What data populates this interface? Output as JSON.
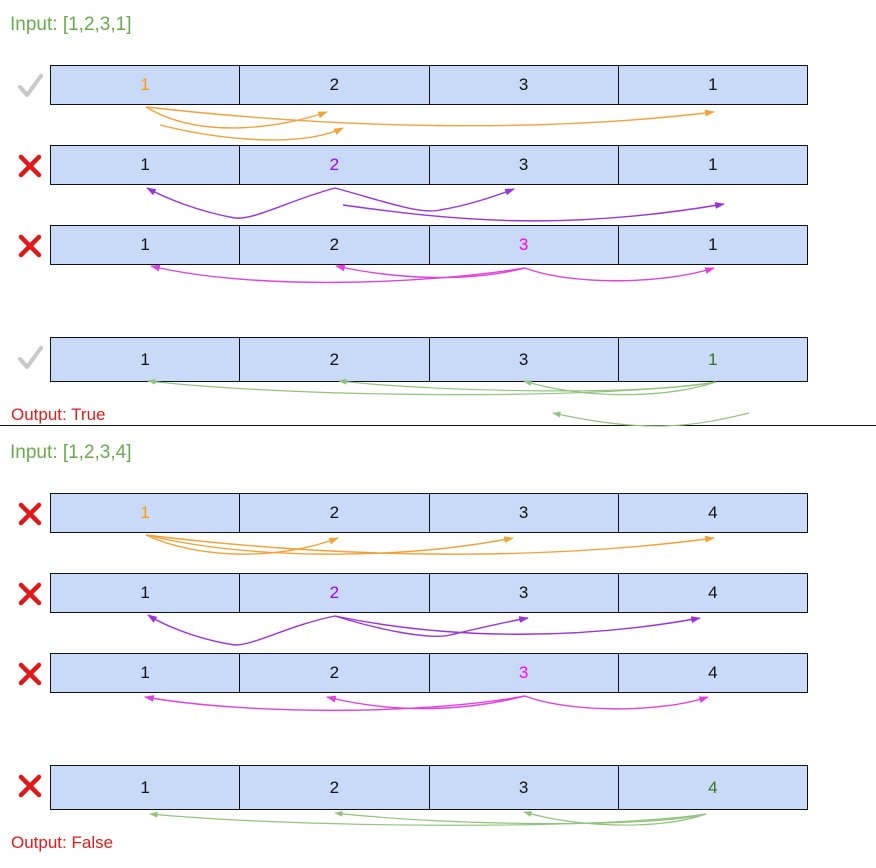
{
  "example1": {
    "input_label": "Input: [1,2,3,1]",
    "output_label": "Output: True",
    "rows": [
      {
        "status": "check",
        "highlight": 0,
        "color": "#ff9900",
        "values": [
          "1",
          "2",
          "3",
          "1"
        ]
      },
      {
        "status": "cross",
        "highlight": 1,
        "color": "#9900ff",
        "values": [
          "1",
          "2",
          "3",
          "1"
        ]
      },
      {
        "status": "cross",
        "highlight": 2,
        "color": "#ff00ff",
        "values": [
          "1",
          "2",
          "3",
          "1"
        ]
      },
      {
        "status": "check",
        "highlight": 3,
        "color": "#38761d",
        "values": [
          "1",
          "2",
          "3",
          "1"
        ]
      }
    ]
  },
  "example2": {
    "input_label": "Input: [1,2,3,4]",
    "output_label": "Output: False",
    "rows": [
      {
        "status": "cross",
        "highlight": 0,
        "color": "#ff9900",
        "values": [
          "1",
          "2",
          "3",
          "4"
        ]
      },
      {
        "status": "cross",
        "highlight": 1,
        "color": "#9900ff",
        "values": [
          "1",
          "2",
          "3",
          "4"
        ]
      },
      {
        "status": "cross",
        "highlight": 2,
        "color": "#ff00ff",
        "values": [
          "1",
          "2",
          "3",
          "4"
        ]
      },
      {
        "status": "cross",
        "highlight": 3,
        "color": "#38761d",
        "values": [
          "1",
          "2",
          "3",
          "4"
        ]
      }
    ]
  },
  "colors": {
    "cell_fill": "#c9daf8",
    "input_label": "#6aa84f",
    "output_label": "#e31a1a",
    "check_mark": "#c8c8c8",
    "cross_mark": "#e01818",
    "arrow_orange": "#f4a13a",
    "arrow_purple": "#9933dd",
    "arrow_magenta": "#e040e0",
    "arrow_green": "#93c47d"
  }
}
